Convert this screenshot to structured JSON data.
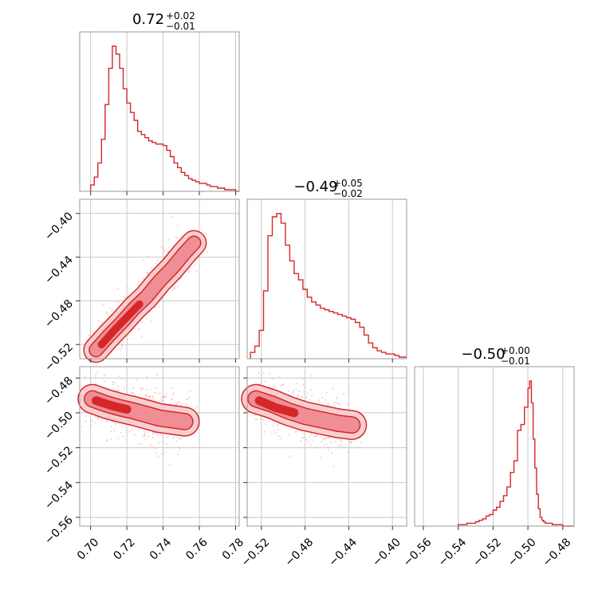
{
  "chart_data": {
    "type": "corner",
    "colors": {
      "main": "#d62728",
      "fill_light": "#f7cfd1",
      "fill_mid": "#ef8e94",
      "scatter": "#f2b6ba",
      "grid": "#c8c8c8",
      "frame": "#999999"
    },
    "grid": true,
    "params": [
      {
        "title": {
          "main": "0.72",
          "sup": "+0.02",
          "sub": "−0.01"
        },
        "range": [
          0.694,
          0.782
        ],
        "ticks": [
          0.7,
          0.72,
          0.74,
          0.76,
          0.78
        ],
        "tick_labels": [
          "0.70",
          "0.72",
          "0.74",
          "0.76",
          "0.78"
        ],
        "hist": {
          "x": [
            0.7,
            0.702,
            0.704,
            0.706,
            0.708,
            0.71,
            0.712,
            0.714,
            0.716,
            0.718,
            0.72,
            0.722,
            0.724,
            0.726,
            0.728,
            0.73,
            0.732,
            0.734,
            0.736,
            0.738,
            0.74,
            0.742,
            0.744,
            0.746,
            0.748,
            0.75,
            0.752,
            0.754,
            0.756,
            0.758,
            0.76,
            0.762,
            0.764,
            0.766,
            0.768,
            0.77,
            0.772,
            0.774,
            0.776,
            0.778,
            0.78
          ],
          "y": [
            0.04,
            0.09,
            0.18,
            0.33,
            0.55,
            0.78,
            0.92,
            0.87,
            0.78,
            0.65,
            0.56,
            0.5,
            0.45,
            0.38,
            0.36,
            0.34,
            0.32,
            0.31,
            0.3,
            0.3,
            0.29,
            0.26,
            0.22,
            0.18,
            0.15,
            0.12,
            0.1,
            0.08,
            0.07,
            0.06,
            0.05,
            0.05,
            0.04,
            0.03,
            0.03,
            0.02,
            0.02,
            0.01,
            0.01,
            0.01,
            0.0
          ]
        }
      },
      {
        "title": {
          "main": "−0.49",
          "sup": "+0.05",
          "sub": "−0.02"
        },
        "range": [
          -0.533,
          -0.387
        ],
        "ticks": [
          -0.52,
          -0.48,
          -0.44,
          -0.4
        ],
        "tick_labels": [
          "−0.52",
          "−0.48",
          "−0.44",
          "−0.40"
        ],
        "hist": {
          "x": [
            -0.53,
            -0.526,
            -0.522,
            -0.518,
            -0.514,
            -0.51,
            -0.506,
            -0.502,
            -0.498,
            -0.494,
            -0.49,
            -0.486,
            -0.482,
            -0.478,
            -0.474,
            -0.47,
            -0.466,
            -0.462,
            -0.458,
            -0.454,
            -0.45,
            -0.446,
            -0.442,
            -0.438,
            -0.434,
            -0.43,
            -0.426,
            -0.422,
            -0.418,
            -0.414,
            -0.41,
            -0.406,
            -0.402,
            -0.398,
            -0.394,
            -0.39
          ],
          "y": [
            0.04,
            0.08,
            0.18,
            0.43,
            0.78,
            0.9,
            0.92,
            0.86,
            0.72,
            0.62,
            0.54,
            0.5,
            0.44,
            0.39,
            0.36,
            0.34,
            0.32,
            0.31,
            0.3,
            0.29,
            0.28,
            0.27,
            0.26,
            0.25,
            0.23,
            0.2,
            0.15,
            0.1,
            0.07,
            0.05,
            0.04,
            0.03,
            0.03,
            0.02,
            0.01,
            0.01
          ]
        }
      },
      {
        "title": {
          "main": "−0.50",
          "sup": "+0.00",
          "sub": "−0.01"
        },
        "range": [
          -0.565,
          -0.4735
        ],
        "ticks": [
          -0.56,
          -0.54,
          -0.52,
          -0.5,
          -0.48
        ],
        "tick_labels": [
          "−0.56",
          "−0.54",
          "−0.52",
          "−0.50",
          "−0.48"
        ],
        "hist": {
          "x": [
            -0.54,
            -0.535,
            -0.53,
            -0.528,
            -0.526,
            -0.524,
            -0.522,
            -0.52,
            -0.518,
            -0.516,
            -0.514,
            -0.512,
            -0.51,
            -0.508,
            -0.506,
            -0.504,
            -0.502,
            -0.5,
            -0.499,
            -0.498,
            -0.497,
            -0.496,
            -0.495,
            -0.494,
            -0.493,
            -0.492,
            -0.491,
            -0.49,
            -0.488,
            -0.486,
            -0.484,
            -0.482,
            -0.48
          ],
          "y": [
            0.01,
            0.02,
            0.03,
            0.04,
            0.05,
            0.07,
            0.08,
            0.11,
            0.13,
            0.17,
            0.21,
            0.27,
            0.37,
            0.45,
            0.66,
            0.7,
            0.82,
            0.95,
            1.0,
            0.85,
            0.6,
            0.4,
            0.22,
            0.12,
            0.06,
            0.04,
            0.03,
            0.02,
            0.02,
            0.01,
            0.01,
            0.01,
            0.0
          ]
        }
      }
    ],
    "joint": [
      {
        "xparam": 0,
        "yparam": 1,
        "ridge": [
          [
            0.703,
            -0.525
          ],
          [
            0.71,
            -0.512
          ],
          [
            0.717,
            -0.5
          ],
          [
            0.724,
            -0.487
          ],
          [
            0.731,
            -0.476
          ],
          [
            0.738,
            -0.462
          ],
          [
            0.745,
            -0.45
          ],
          [
            0.752,
            -0.436
          ],
          [
            0.757,
            -0.427
          ]
        ],
        "core": [
          [
            0.706,
            -0.52
          ],
          [
            0.713,
            -0.507
          ],
          [
            0.72,
            -0.495
          ],
          [
            0.727,
            -0.483
          ]
        ],
        "width_data": 0.006
      },
      {
        "xparam": 0,
        "yparam": 2,
        "ridge": [
          [
            0.701,
            -0.492
          ],
          [
            0.709,
            -0.495
          ],
          [
            0.716,
            -0.497
          ],
          [
            0.724,
            -0.499
          ],
          [
            0.731,
            -0.501
          ],
          [
            0.738,
            -0.503
          ],
          [
            0.745,
            -0.504
          ],
          [
            0.752,
            -0.505
          ]
        ],
        "core": [
          [
            0.703,
            -0.493
          ],
          [
            0.712,
            -0.496
          ],
          [
            0.72,
            -0.498
          ]
        ],
        "width_data": 0.0045
      },
      {
        "xparam": 1,
        "yparam": 2,
        "ridge": [
          [
            -0.525,
            -0.492
          ],
          [
            -0.51,
            -0.495
          ],
          [
            -0.495,
            -0.499
          ],
          [
            -0.48,
            -0.502
          ],
          [
            -0.465,
            -0.504
          ],
          [
            -0.45,
            -0.506
          ],
          [
            -0.437,
            -0.507
          ]
        ],
        "core": [
          [
            -0.522,
            -0.493
          ],
          [
            -0.507,
            -0.497
          ],
          [
            -0.49,
            -0.5
          ]
        ],
        "width_data": 0.0045
      }
    ]
  }
}
